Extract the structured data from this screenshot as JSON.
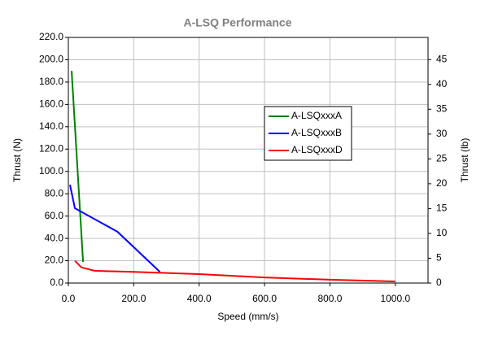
{
  "chart_data": {
    "type": "line",
    "title": "A-LSQ Performance",
    "x_label": "Speed (mm/s)",
    "y_label": "Thrust (N)",
    "y2_label": "Thrust (lb)",
    "xlim": [
      0,
      1100
    ],
    "xticks": [
      {
        "value": 0,
        "label": "0.0"
      },
      {
        "value": 200,
        "label": "200.0"
      },
      {
        "value": 400,
        "label": "400.0"
      },
      {
        "value": 600,
        "label": "600.0"
      },
      {
        "value": 800,
        "label": "800.0"
      },
      {
        "value": 1000,
        "label": "1000.0"
      }
    ],
    "ylim": [
      0,
      220
    ],
    "yticks": [
      {
        "value": 0,
        "label": "0.0"
      },
      {
        "value": 20,
        "label": "20.0"
      },
      {
        "value": 40,
        "label": "40.0"
      },
      {
        "value": 60,
        "label": "60.0"
      },
      {
        "value": 80,
        "label": "80.0"
      },
      {
        "value": 100,
        "label": "100.0"
      },
      {
        "value": 120,
        "label": "120.0"
      },
      {
        "value": 140,
        "label": "140.0"
      },
      {
        "value": 160,
        "label": "160.0"
      },
      {
        "value": 180,
        "label": "180.0"
      },
      {
        "value": 200,
        "label": "200.0"
      },
      {
        "value": 220,
        "label": "220.0"
      }
    ],
    "y2lim": [
      0,
      49.46
    ],
    "y2ticks": [
      0,
      5,
      10,
      15,
      20,
      25,
      30,
      35,
      40,
      45
    ],
    "grid": true,
    "legend": "center right",
    "series": [
      {
        "name": "A-LSQxxxA",
        "color": "#008000",
        "x": [
          10,
          45
        ],
        "values": [
          190,
          19
        ]
      },
      {
        "name": "A-LSQxxxB",
        "color": "#0000ff",
        "x": [
          5,
          20,
          150,
          280
        ],
        "values": [
          88,
          67,
          46,
          10
        ]
      },
      {
        "name": "A-LSQxxxD",
        "color": "#ff0000",
        "x": [
          20,
          40,
          80,
          200,
          400,
          600,
          800,
          1000
        ],
        "values": [
          20,
          14,
          11,
          10,
          8,
          5,
          3,
          1.5
        ]
      }
    ]
  }
}
